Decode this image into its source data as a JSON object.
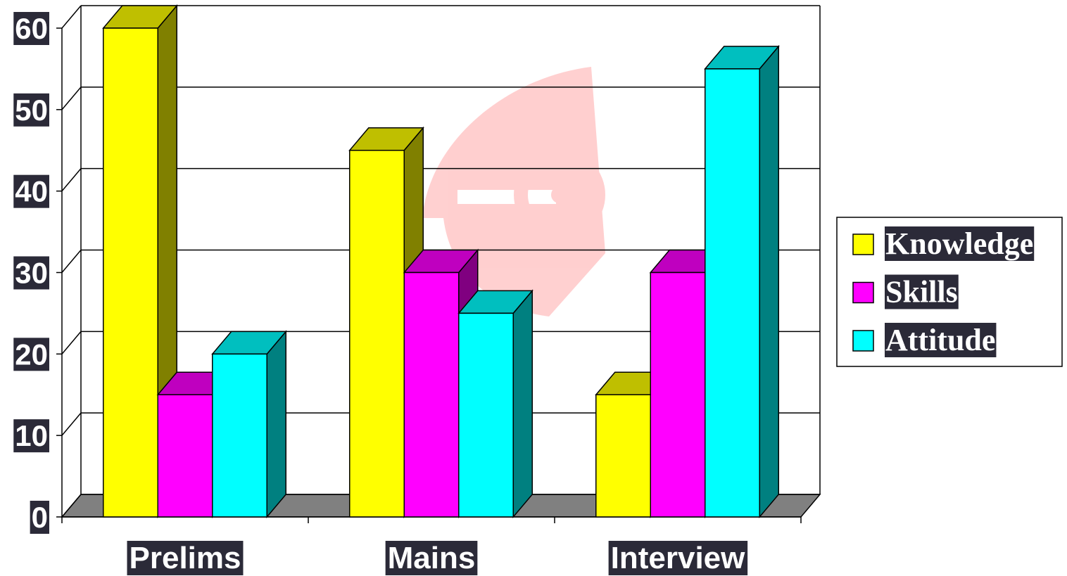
{
  "chart_data": {
    "type": "bar3d",
    "categories": [
      "Prelims",
      "Mains",
      "Interview"
    ],
    "series": [
      {
        "name": "Knowledge",
        "color": "#ffff00",
        "values": [
          60,
          45,
          15
        ]
      },
      {
        "name": "Skills",
        "color": "#ff00ff",
        "values": [
          15,
          30,
          30
        ]
      },
      {
        "name": "Attitude",
        "color": "#00ffff",
        "values": [
          20,
          25,
          55
        ]
      }
    ],
    "ylim": [
      0,
      60
    ],
    "yticks": [
      0,
      10,
      20,
      30,
      40,
      50,
      60
    ],
    "grid": true,
    "legend": "right"
  }
}
